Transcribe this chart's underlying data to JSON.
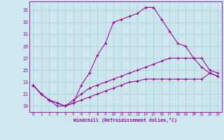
{
  "xlabel": "Windchill (Refroidissement éolien,°C)",
  "background_color": "#cce8ee",
  "grid_color": "#aacdd5",
  "line_color": "#990099",
  "xlim": [
    -0.5,
    23.5
  ],
  "ylim": [
    18.0,
    36.5
  ],
  "yticks": [
    19,
    21,
    23,
    25,
    27,
    29,
    31,
    33,
    35
  ],
  "xticks": [
    0,
    1,
    2,
    3,
    4,
    5,
    6,
    7,
    8,
    9,
    10,
    11,
    12,
    13,
    14,
    15,
    16,
    17,
    18,
    19,
    20,
    21,
    22,
    23
  ],
  "series1": [
    [
      0,
      22.5
    ],
    [
      1,
      21.0
    ],
    [
      2,
      20.0
    ],
    [
      3,
      19.0
    ],
    [
      4,
      19.0
    ],
    [
      5,
      19.5
    ],
    [
      6,
      22.5
    ],
    [
      7,
      24.5
    ],
    [
      8,
      27.5
    ],
    [
      9,
      29.5
    ],
    [
      10,
      33.0
    ],
    [
      11,
      33.5
    ],
    [
      12,
      34.0
    ],
    [
      13,
      34.5
    ],
    [
      14,
      35.5
    ],
    [
      15,
      35.5
    ],
    [
      16,
      33.5
    ],
    [
      17,
      31.5
    ],
    [
      18,
      29.5
    ],
    [
      19,
      29.0
    ],
    [
      20,
      27.0
    ],
    [
      21,
      25.5
    ],
    [
      22,
      24.5
    ],
    [
      23,
      24.0
    ]
  ],
  "series2": [
    [
      0,
      22.5
    ],
    [
      1,
      21.0
    ],
    [
      2,
      20.0
    ],
    [
      3,
      19.5
    ],
    [
      4,
      19.0
    ],
    [
      5,
      20.0
    ],
    [
      6,
      21.0
    ],
    [
      7,
      22.0
    ],
    [
      8,
      22.5
    ],
    [
      9,
      23.0
    ],
    [
      10,
      23.5
    ],
    [
      11,
      24.0
    ],
    [
      12,
      24.5
    ],
    [
      13,
      25.0
    ],
    [
      14,
      25.5
    ],
    [
      15,
      26.0
    ],
    [
      16,
      26.5
    ],
    [
      17,
      27.0
    ],
    [
      18,
      27.0
    ],
    [
      19,
      27.0
    ],
    [
      20,
      27.0
    ],
    [
      21,
      27.0
    ],
    [
      22,
      25.0
    ],
    [
      23,
      24.5
    ]
  ],
  "series3": [
    [
      0,
      22.5
    ],
    [
      1,
      21.0
    ],
    [
      2,
      20.0
    ],
    [
      3,
      19.5
    ],
    [
      4,
      19.0
    ],
    [
      5,
      19.5
    ],
    [
      6,
      20.0
    ],
    [
      7,
      20.5
    ],
    [
      8,
      21.0
    ],
    [
      9,
      21.5
    ],
    [
      10,
      22.0
    ],
    [
      11,
      22.5
    ],
    [
      12,
      23.0
    ],
    [
      13,
      23.2
    ],
    [
      14,
      23.5
    ],
    [
      15,
      23.5
    ],
    [
      16,
      23.5
    ],
    [
      17,
      23.5
    ],
    [
      18,
      23.5
    ],
    [
      19,
      23.5
    ],
    [
      20,
      23.5
    ],
    [
      21,
      23.5
    ],
    [
      22,
      24.5
    ],
    [
      23,
      24.0
    ]
  ]
}
